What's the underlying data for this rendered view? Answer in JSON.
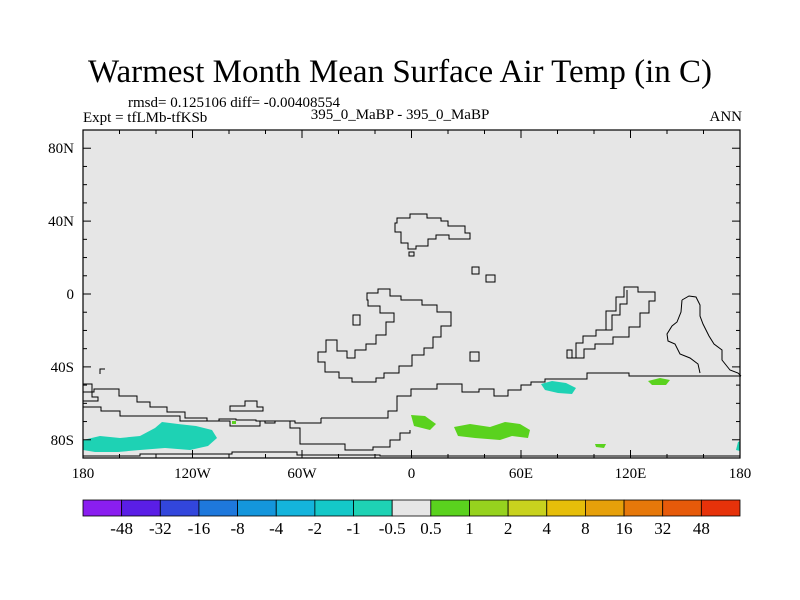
{
  "title": "Warmest Month Mean Surface Air Temp (in C)",
  "stats_text": "rmsd= 0.125106 diff= -0.00408554",
  "expt_text": "Expt = tfLMb-tfKSb",
  "center_subtitle": "395_0_MaBP - 395_0_MaBP",
  "season": "ANN",
  "latitude_labels": [
    "80N",
    "40N",
    "0",
    "40S",
    "80S"
  ],
  "longitude_labels": [
    "180",
    "120W",
    "60W",
    "0",
    "60E",
    "120E",
    "180"
  ],
  "colorbar": {
    "labels": [
      "-48",
      "-32",
      "-16",
      "-8",
      "-4",
      "-2",
      "-1",
      "-0.5",
      "0.5",
      "1",
      "2",
      "4",
      "8",
      "16",
      "32",
      "48"
    ],
    "colors": [
      "#8a1ef0",
      "#5a1ee6",
      "#3246dc",
      "#1e78dc",
      "#1496dc",
      "#14b4dc",
      "#14c8c8",
      "#1ed2b4",
      "#e6e6e6",
      "#5ad21e",
      "#96d21e",
      "#c8d21e",
      "#e6be0a",
      "#e6a00a",
      "#e6780a",
      "#e65a0a",
      "#e6320a"
    ]
  },
  "colors": {
    "background_field": "#e6e6e6",
    "negative_anomaly": "#1ed2b4",
    "positive_anomaly": "#5ad21e"
  }
}
